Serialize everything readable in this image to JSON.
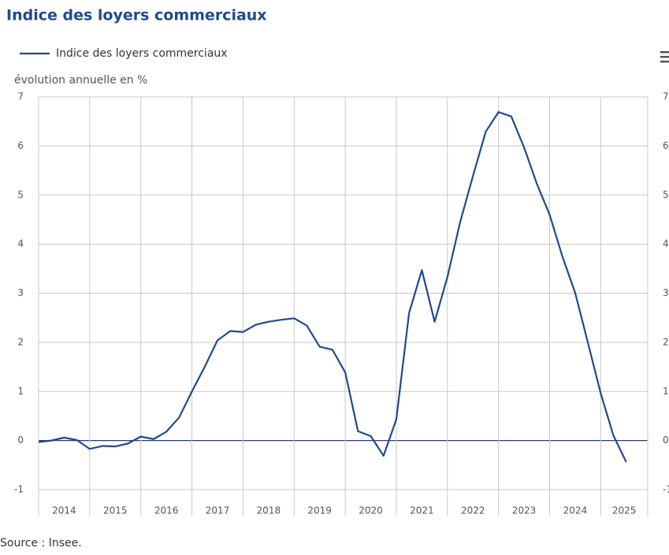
{
  "chart_data": {
    "type": "line",
    "title": "Indice des loyers commerciaux",
    "ylabel": "évolution annuelle en %",
    "source": "Source : Insee.",
    "x": [
      2014,
      2014.25,
      2014.5,
      2014.75,
      2015,
      2015.25,
      2015.5,
      2015.75,
      2016,
      2016.25,
      2016.5,
      2016.75,
      2017,
      2017.25,
      2017.5,
      2017.75,
      2018,
      2018.25,
      2018.5,
      2018.75,
      2019,
      2019.25,
      2019.5,
      2019.75,
      2020,
      2020.25,
      2020.5,
      2020.75,
      2021,
      2021.25,
      2021.5,
      2021.75,
      2022,
      2022.25,
      2022.5,
      2022.75,
      2023,
      2023.25,
      2023.5,
      2023.75,
      2024,
      2024.25,
      2024.5,
      2024.75,
      2025,
      2025.25,
      2025.5
    ],
    "xlim": [
      2014,
      2025.92
    ],
    "xticks": [
      2014,
      2015,
      2016,
      2017,
      2018,
      2019,
      2020,
      2021,
      2022,
      2023,
      2024,
      2025
    ],
    "xtick_labels": [
      "2014",
      "2015",
      "2016",
      "2017",
      "2018",
      "2019",
      "2020",
      "2021",
      "2022",
      "2023",
      "2024",
      "2025"
    ],
    "series": [
      {
        "name": "Indice des loyers commerciaux",
        "color": "#1f4a8c",
        "values": [
          -0.03,
          0.0,
          0.06,
          0.01,
          -0.17,
          -0.11,
          -0.12,
          -0.06,
          0.08,
          0.03,
          0.18,
          0.47,
          1.0,
          1.5,
          2.04,
          2.23,
          2.21,
          2.36,
          2.42,
          2.46,
          2.49,
          2.34,
          1.91,
          1.85,
          1.39,
          0.19,
          0.09,
          -0.31,
          0.43,
          2.6,
          3.47,
          2.42,
          3.33,
          4.45,
          5.39,
          6.29,
          6.69,
          6.6,
          5.97,
          5.23,
          4.6,
          3.75,
          3.01,
          1.99,
          0.96,
          0.1,
          -0.44
        ]
      }
    ],
    "ylim": [
      -1,
      7
    ],
    "yticks": [
      -1,
      0,
      1,
      2,
      3,
      4,
      5,
      6,
      7
    ],
    "grid": true,
    "legend": "top-left"
  }
}
